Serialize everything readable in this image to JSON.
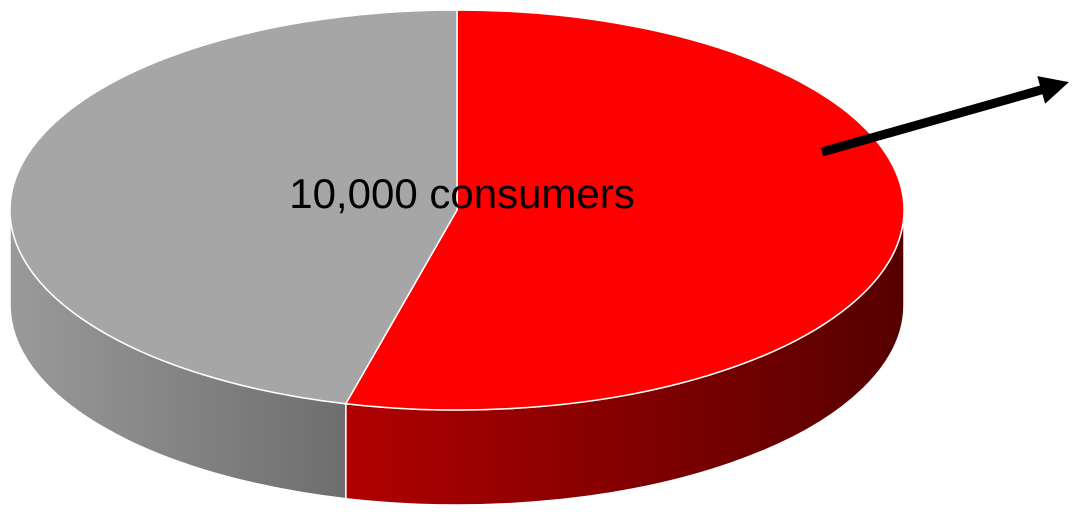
{
  "chart_data": {
    "type": "pie",
    "style": "3d",
    "categories": [
      "",
      ""
    ],
    "values": [
      54,
      46
    ],
    "colors": [
      "#ff0000",
      "#a6a6a6"
    ],
    "annotations": [
      {
        "text": "10,000 consumers"
      }
    ],
    "arrow": {
      "direction": "up-right",
      "color": "#000000"
    }
  }
}
